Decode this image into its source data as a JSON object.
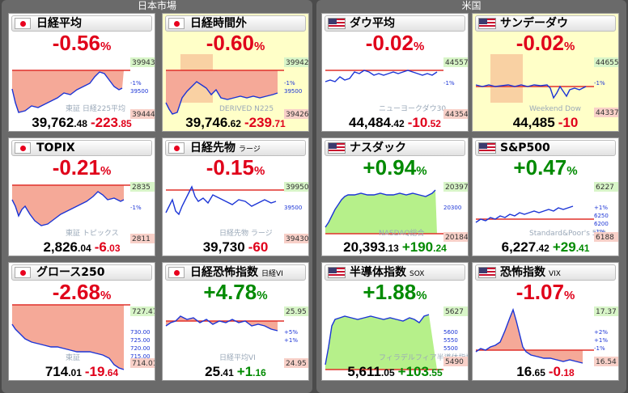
{
  "markets": {
    "japan_title": "日本市場",
    "us_title": "米国"
  },
  "colors": {
    "down": "#e0001a",
    "up": "#008a00",
    "series": "#1b34d6"
  },
  "cards": [
    {
      "id": "nikkei",
      "flag": "jp-flag-icon",
      "name": "日経平均",
      "sub": "",
      "pct": "-0.56",
      "pct_unit": "%",
      "price_main": "39,762",
      "price_dec": ".48",
      "change_main": "-223",
      "change_dec": ".85",
      "dir": "neg",
      "hi_label": "39943",
      "lo_label": "39444",
      "mid_labels": [
        "-1%",
        "39500"
      ],
      "watermark": "東証 日経225平均",
      "highlight": false
    },
    {
      "id": "nikkei-night",
      "flag": "jp-flag-icon",
      "name": "日経時間外",
      "sub": "",
      "pct": "-0.60",
      "pct_unit": "%",
      "price_main": "39,746",
      "price_dec": ".62",
      "change_main": "-239",
      "change_dec": ".71",
      "dir": "neg",
      "hi_label": "39942",
      "lo_label": "39426",
      "mid_labels": [
        "-1%",
        "39500"
      ],
      "watermark": "DERIVED N225",
      "highlight": true
    },
    {
      "id": "dow",
      "flag": "us-flag-icon",
      "name": "ダウ平均",
      "sub": "",
      "pct": "-0.02",
      "pct_unit": "%",
      "price_main": "44,484",
      "price_dec": ".42",
      "change_main": "-10",
      "change_dec": ".52",
      "dir": "neg",
      "hi_label": "44557",
      "lo_label": "44354",
      "mid_labels": [
        "-1%"
      ],
      "watermark": "ニューヨークダウ30",
      "highlight": false
    },
    {
      "id": "sunday-dow",
      "flag": "us-flag-icon",
      "name": "サンデーダウ",
      "sub": "",
      "pct": "-0.02",
      "pct_unit": "%",
      "price_main": "44,485",
      "price_dec": "",
      "change_main": "-10",
      "change_dec": "",
      "dir": "neg",
      "hi_label": "44655",
      "lo_label": "44337",
      "mid_labels": [
        "-1%"
      ],
      "watermark": "Weekend Dow",
      "highlight": true
    },
    {
      "id": "topix",
      "flag": "jp-flag-icon",
      "name": "TOPIX",
      "sub": "",
      "pct": "-0.21",
      "pct_unit": "%",
      "price_main": "2,826",
      "price_dec": ".04",
      "change_main": "-6",
      "change_dec": ".03",
      "dir": "neg",
      "hi_label": "2835",
      "lo_label": "2811",
      "mid_labels": [
        "-1%"
      ],
      "watermark": "東証 トピックス",
      "highlight": false
    },
    {
      "id": "nikkei-futures",
      "flag": "jp-flag-icon",
      "name": "日経先物",
      "sub": "ラージ",
      "pct": "-0.15",
      "pct_unit": "%",
      "price_main": "39,730",
      "price_dec": "",
      "change_main": "-60",
      "change_dec": "",
      "dir": "neg",
      "hi_label": "39950",
      "lo_label": "39430",
      "mid_labels": [
        "39500"
      ],
      "watermark": "日経先物 ラージ",
      "highlight": false
    },
    {
      "id": "nasdaq",
      "flag": "us-flag-icon",
      "name": "ナスダック",
      "sub": "",
      "pct": "+0.94",
      "pct_unit": "%",
      "price_main": "20,393",
      "price_dec": ".13",
      "change_main": "+190",
      "change_dec": ".24",
      "dir": "pos",
      "hi_label": "20397",
      "lo_label": "20184",
      "mid_labels": [
        "20300"
      ],
      "watermark": "NASDAQ総合",
      "highlight": false
    },
    {
      "id": "sp500",
      "flag": "us-flag-icon",
      "name": "S&P500",
      "sub": "",
      "pct": "+0.47",
      "pct_unit": "%",
      "price_main": "6,227",
      "price_dec": ".42",
      "change_main": "+29",
      "change_dec": ".41",
      "dir": "pos",
      "hi_label": "6227",
      "lo_label": "6188",
      "mid_labels": [
        "+1%",
        "6250",
        "6200",
        "-1%"
      ],
      "watermark": "Standard&Poor's 500",
      "highlight": false
    },
    {
      "id": "growth250",
      "flag": "jp-flag-icon",
      "name": "グロース250",
      "sub": "",
      "pct": "-2.68",
      "pct_unit": "%",
      "price_main": "714",
      "price_dec": ".01",
      "change_main": "-19",
      "change_dec": ".64",
      "dir": "neg",
      "hi_label": "727.47",
      "lo_label": "714.01",
      "mid_labels": [
        "730.00",
        "725.00",
        "720.00",
        "715.00"
      ],
      "watermark": "東証",
      "highlight": false
    },
    {
      "id": "nikkei-vi",
      "flag": "jp-flag-icon",
      "name": "日経恐怖指数",
      "sub": "日経VI",
      "pct": "+4.78",
      "pct_unit": "%",
      "price_main": "25",
      "price_dec": ".41",
      "change_main": "+1",
      "change_dec": ".16",
      "dir": "neg",
      "hi_label": "25.95",
      "lo_label": "24.95",
      "mid_labels": [
        "+5%",
        "+1%"
      ],
      "watermark": "日経平均VI",
      "highlight": false
    },
    {
      "id": "sox",
      "flag": "us-flag-icon",
      "name": "半導体指数",
      "sub": "SOX",
      "pct": "+1.88",
      "pct_unit": "%",
      "price_main": "5,611",
      "price_dec": ".05",
      "change_main": "+103",
      "change_dec": ".55",
      "dir": "pos",
      "hi_label": "5627",
      "lo_label": "5490",
      "mid_labels": [
        "5600",
        "5550",
        "5500"
      ],
      "watermark": "フィラデルフィア半導体指数",
      "highlight": false
    },
    {
      "id": "vix",
      "flag": "us-flag-icon",
      "name": "恐怖指数",
      "sub": "VIX",
      "pct": "-1.07",
      "pct_unit": "%",
      "price_main": "16",
      "price_dec": ".65",
      "change_main": "-0",
      "change_dec": ".18",
      "dir": "pos",
      "hi_label": "17.37",
      "lo_label": "16.54",
      "mid_labels": [
        "+2%",
        "+1%",
        "-1%"
      ],
      "watermark": "",
      "highlight": false
    }
  ]
}
